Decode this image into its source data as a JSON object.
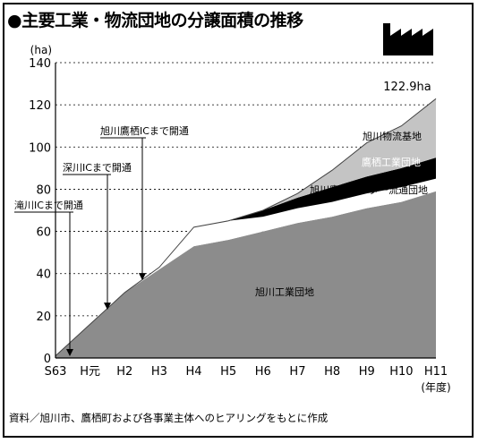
{
  "title": "●主要工業・物流団地の分譲面積の推移",
  "source_note": "資料／旭川市、鷹栖町および各事業主体へのヒアリングをもとに作成",
  "icons": {
    "factory": "factory-icon"
  },
  "chart_data": {
    "type": "area",
    "stacked": true,
    "title": "●主要工業・物流団地の分譲面積の推移",
    "y_unit_label": "(ha)",
    "x_unit_label": "(年度)",
    "categories": [
      "S63",
      "H元",
      "H2",
      "H3",
      "H4",
      "H5",
      "H6",
      "H7",
      "H8",
      "H9",
      "H10",
      "H11"
    ],
    "ylim": [
      0,
      140
    ],
    "yticks": [
      0,
      20,
      40,
      60,
      80,
      100,
      120,
      140
    ],
    "grid": "dashed horizontal",
    "series": [
      {
        "name": "旭川工業団地",
        "color": "#8c8c8c",
        "values": [
          1,
          16,
          31,
          42,
          53,
          56,
          60,
          64,
          67,
          71,
          74,
          79
        ]
      },
      {
        "name": "旭川鷹栖インター流通団地",
        "color": "#ffffff",
        "values": [
          0,
          0,
          0,
          1,
          9,
          9,
          7,
          7,
          7,
          7,
          7,
          6
        ]
      },
      {
        "name": "鷹栖工業団地",
        "color": "#000000",
        "values": [
          0,
          0,
          0,
          0,
          0,
          0,
          3,
          5,
          7,
          8,
          9,
          10
        ]
      },
      {
        "name": "旭川物流基地",
        "color": "#c4c4c4",
        "values": [
          0,
          0,
          0,
          0,
          0,
          0,
          0,
          2,
          8,
          16,
          20,
          27.9
        ]
      }
    ],
    "total_label": "122.9ha",
    "annotations": [
      {
        "text": "滝川ICまで開通",
        "x": "H元",
        "y": 0
      },
      {
        "text": "深川ICまで開通",
        "x": "H元",
        "y": 22
      },
      {
        "text": "旭川鷹栖ICまで開通",
        "x": "H2",
        "y": 36
      }
    ]
  }
}
